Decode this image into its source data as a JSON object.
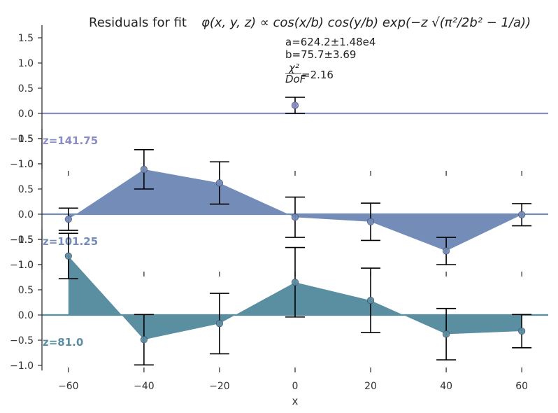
{
  "title_prefix": "Residuals for fit ",
  "title_formula": "φ(x, y, z) ∝ cos(x/b) cos(y/b) exp(−z √(π²/2b² − 1/a))",
  "annotation": {
    "a": "a=624.2±1.48e4",
    "b": "b=75.7±3.69",
    "chi_num": "χ²",
    "chi_den": "DoF",
    "chi_val": "=2.16"
  },
  "chart_data": [
    {
      "type": "area",
      "panel": "z=141.75",
      "label": "z=141.75",
      "color": "#8a8cc4",
      "x": [
        0
      ],
      "y": [
        0.16
      ],
      "yerr": [
        0.16
      ],
      "ylim": [
        -1.1,
        1.7
      ],
      "yticks": [
        -1.0,
        -0.5,
        0.0,
        0.5,
        1.0,
        1.5
      ]
    },
    {
      "type": "area",
      "panel": "z=101.25",
      "label": "z=101.25",
      "color": "#738db8",
      "x": [
        -60,
        -40,
        -20,
        0,
        20,
        40,
        60
      ],
      "y": [
        -0.1,
        0.89,
        0.62,
        -0.06,
        -0.15,
        -0.73,
        -0.01
      ],
      "yerr": [
        0.22,
        0.39,
        0.42,
        0.4,
        0.37,
        0.27,
        0.22
      ],
      "ylim": [
        -1.1,
        1.7
      ],
      "yticks": [
        -1.0,
        -0.5,
        0.0,
        0.5,
        1.0,
        1.5
      ]
    },
    {
      "type": "area",
      "panel": "z=81.0",
      "label": "z=81.0",
      "color": "#5a8ea1",
      "x": [
        -60,
        -40,
        -20,
        0,
        20,
        40,
        60
      ],
      "y": [
        1.17,
        -0.49,
        -0.17,
        0.65,
        0.29,
        -0.38,
        -0.32
      ],
      "yerr": [
        0.45,
        0.5,
        0.6,
        0.69,
        0.64,
        0.51,
        0.33
      ],
      "ylim": [
        -1.1,
        1.7
      ],
      "yticks": [
        -1.0,
        -0.5,
        0.0,
        0.5,
        1.0,
        1.5
      ]
    }
  ],
  "x_axis": {
    "label": "x",
    "ticks": [
      -60,
      -40,
      -20,
      0,
      20,
      40,
      60
    ],
    "tick_labels": [
      "−60",
      "−40",
      "−20",
      "0",
      "20",
      "40",
      "60"
    ],
    "xlim": [
      -67,
      67
    ]
  }
}
